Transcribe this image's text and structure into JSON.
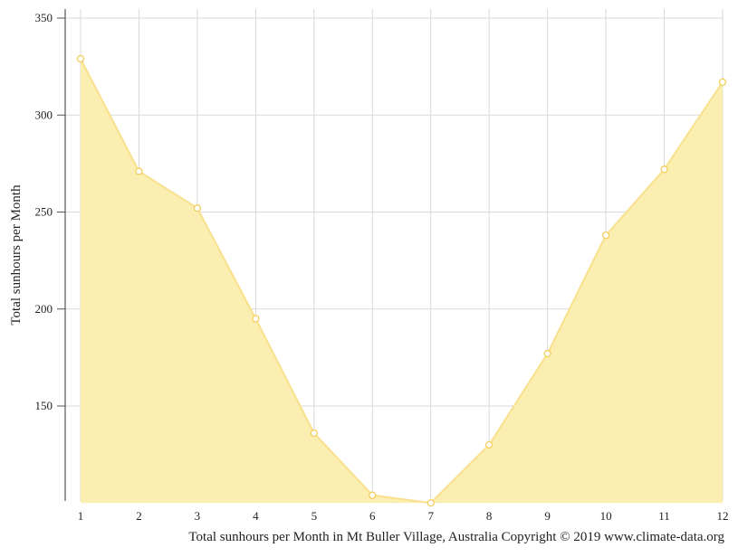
{
  "chart_data": {
    "type": "area",
    "x": [
      1,
      2,
      3,
      4,
      5,
      6,
      7,
      8,
      9,
      10,
      11,
      12
    ],
    "series": [
      {
        "values": [
          329,
          271,
          252,
          195,
          136,
          104,
          100,
          130,
          177,
          238,
          272,
          317
        ]
      }
    ],
    "ylabel": "Total sunhours per Month",
    "xlabel": "Total sunhours per Month in Mt Buller Village, Australia Copyright © 2019 www.climate-data.org",
    "ylim": [
      100,
      350
    ],
    "yticks": [
      150,
      200,
      250,
      300,
      350
    ],
    "xticks": [
      "1",
      "2",
      "3",
      "4",
      "5",
      "6",
      "7",
      "8",
      "9",
      "10",
      "11",
      "12"
    ],
    "grid": true,
    "legend": "none",
    "colors": {
      "fill": "#faeeb0",
      "line": "#f9e08d",
      "marker_fill": "#ffffff",
      "marker_stroke": "#f2cf5b",
      "grid": "#d9d9d9",
      "axis": "#555555"
    }
  }
}
